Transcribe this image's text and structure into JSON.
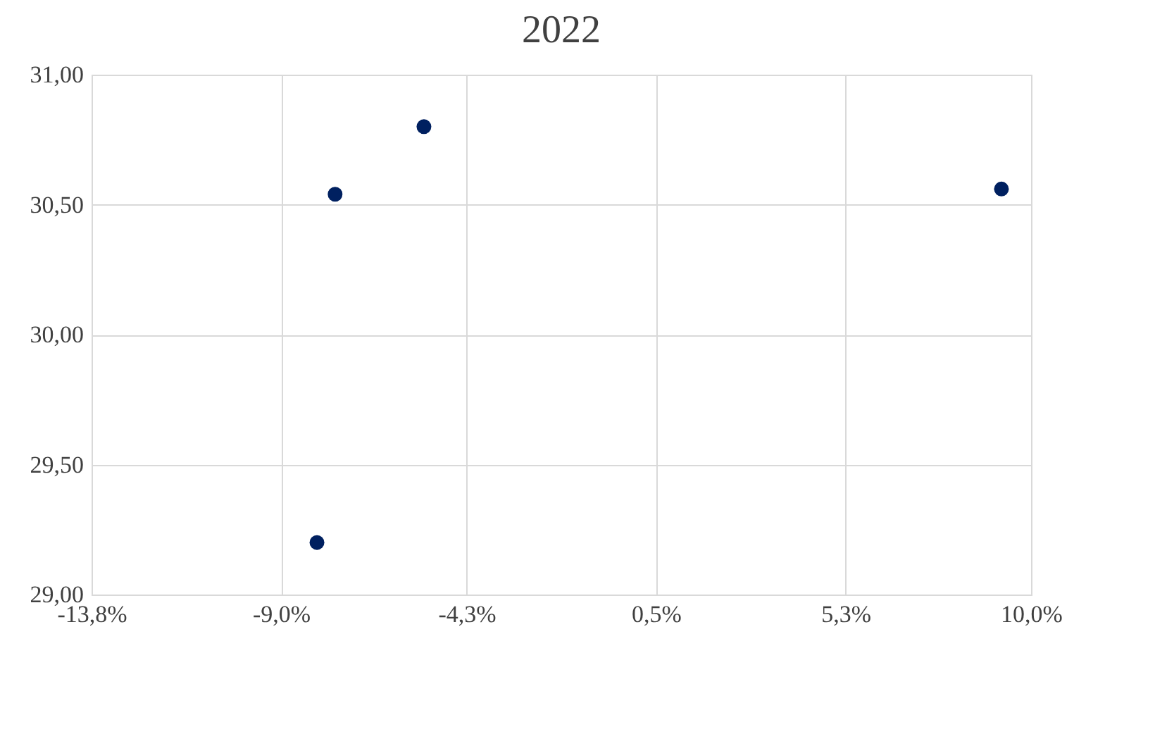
{
  "chart_data": {
    "type": "scatter",
    "title": "2022",
    "x": [
      -7.63,
      -5.38,
      9.25,
      -8.09
    ],
    "series": [
      {
        "color": "#002060",
        "values": [
          30.54,
          30.8,
          30.56,
          29.2
        ]
      }
    ],
    "xlim": [
      -13.8,
      10.0
    ],
    "xticks": [
      {
        "value": -13.8,
        "label": "-13,8%"
      },
      {
        "value": -9.0,
        "label": "-9,0%"
      },
      {
        "value": -4.3,
        "label": "-4,3%"
      },
      {
        "value": 0.5,
        "label": "0,5%"
      },
      {
        "value": 5.3,
        "label": "5,3%"
      },
      {
        "value": 10.0,
        "label": "10,0%"
      }
    ],
    "ylim": [
      29,
      31
    ],
    "yticks": [
      {
        "value": 29,
        "label": "29,00"
      },
      {
        "value": 29.5,
        "label": "29,50"
      },
      {
        "value": 30,
        "label": "30,00"
      },
      {
        "value": 30.5,
        "label": "30,50"
      },
      {
        "value": 31,
        "label": "31,00"
      }
    ],
    "grid": true,
    "marker": "circle"
  }
}
